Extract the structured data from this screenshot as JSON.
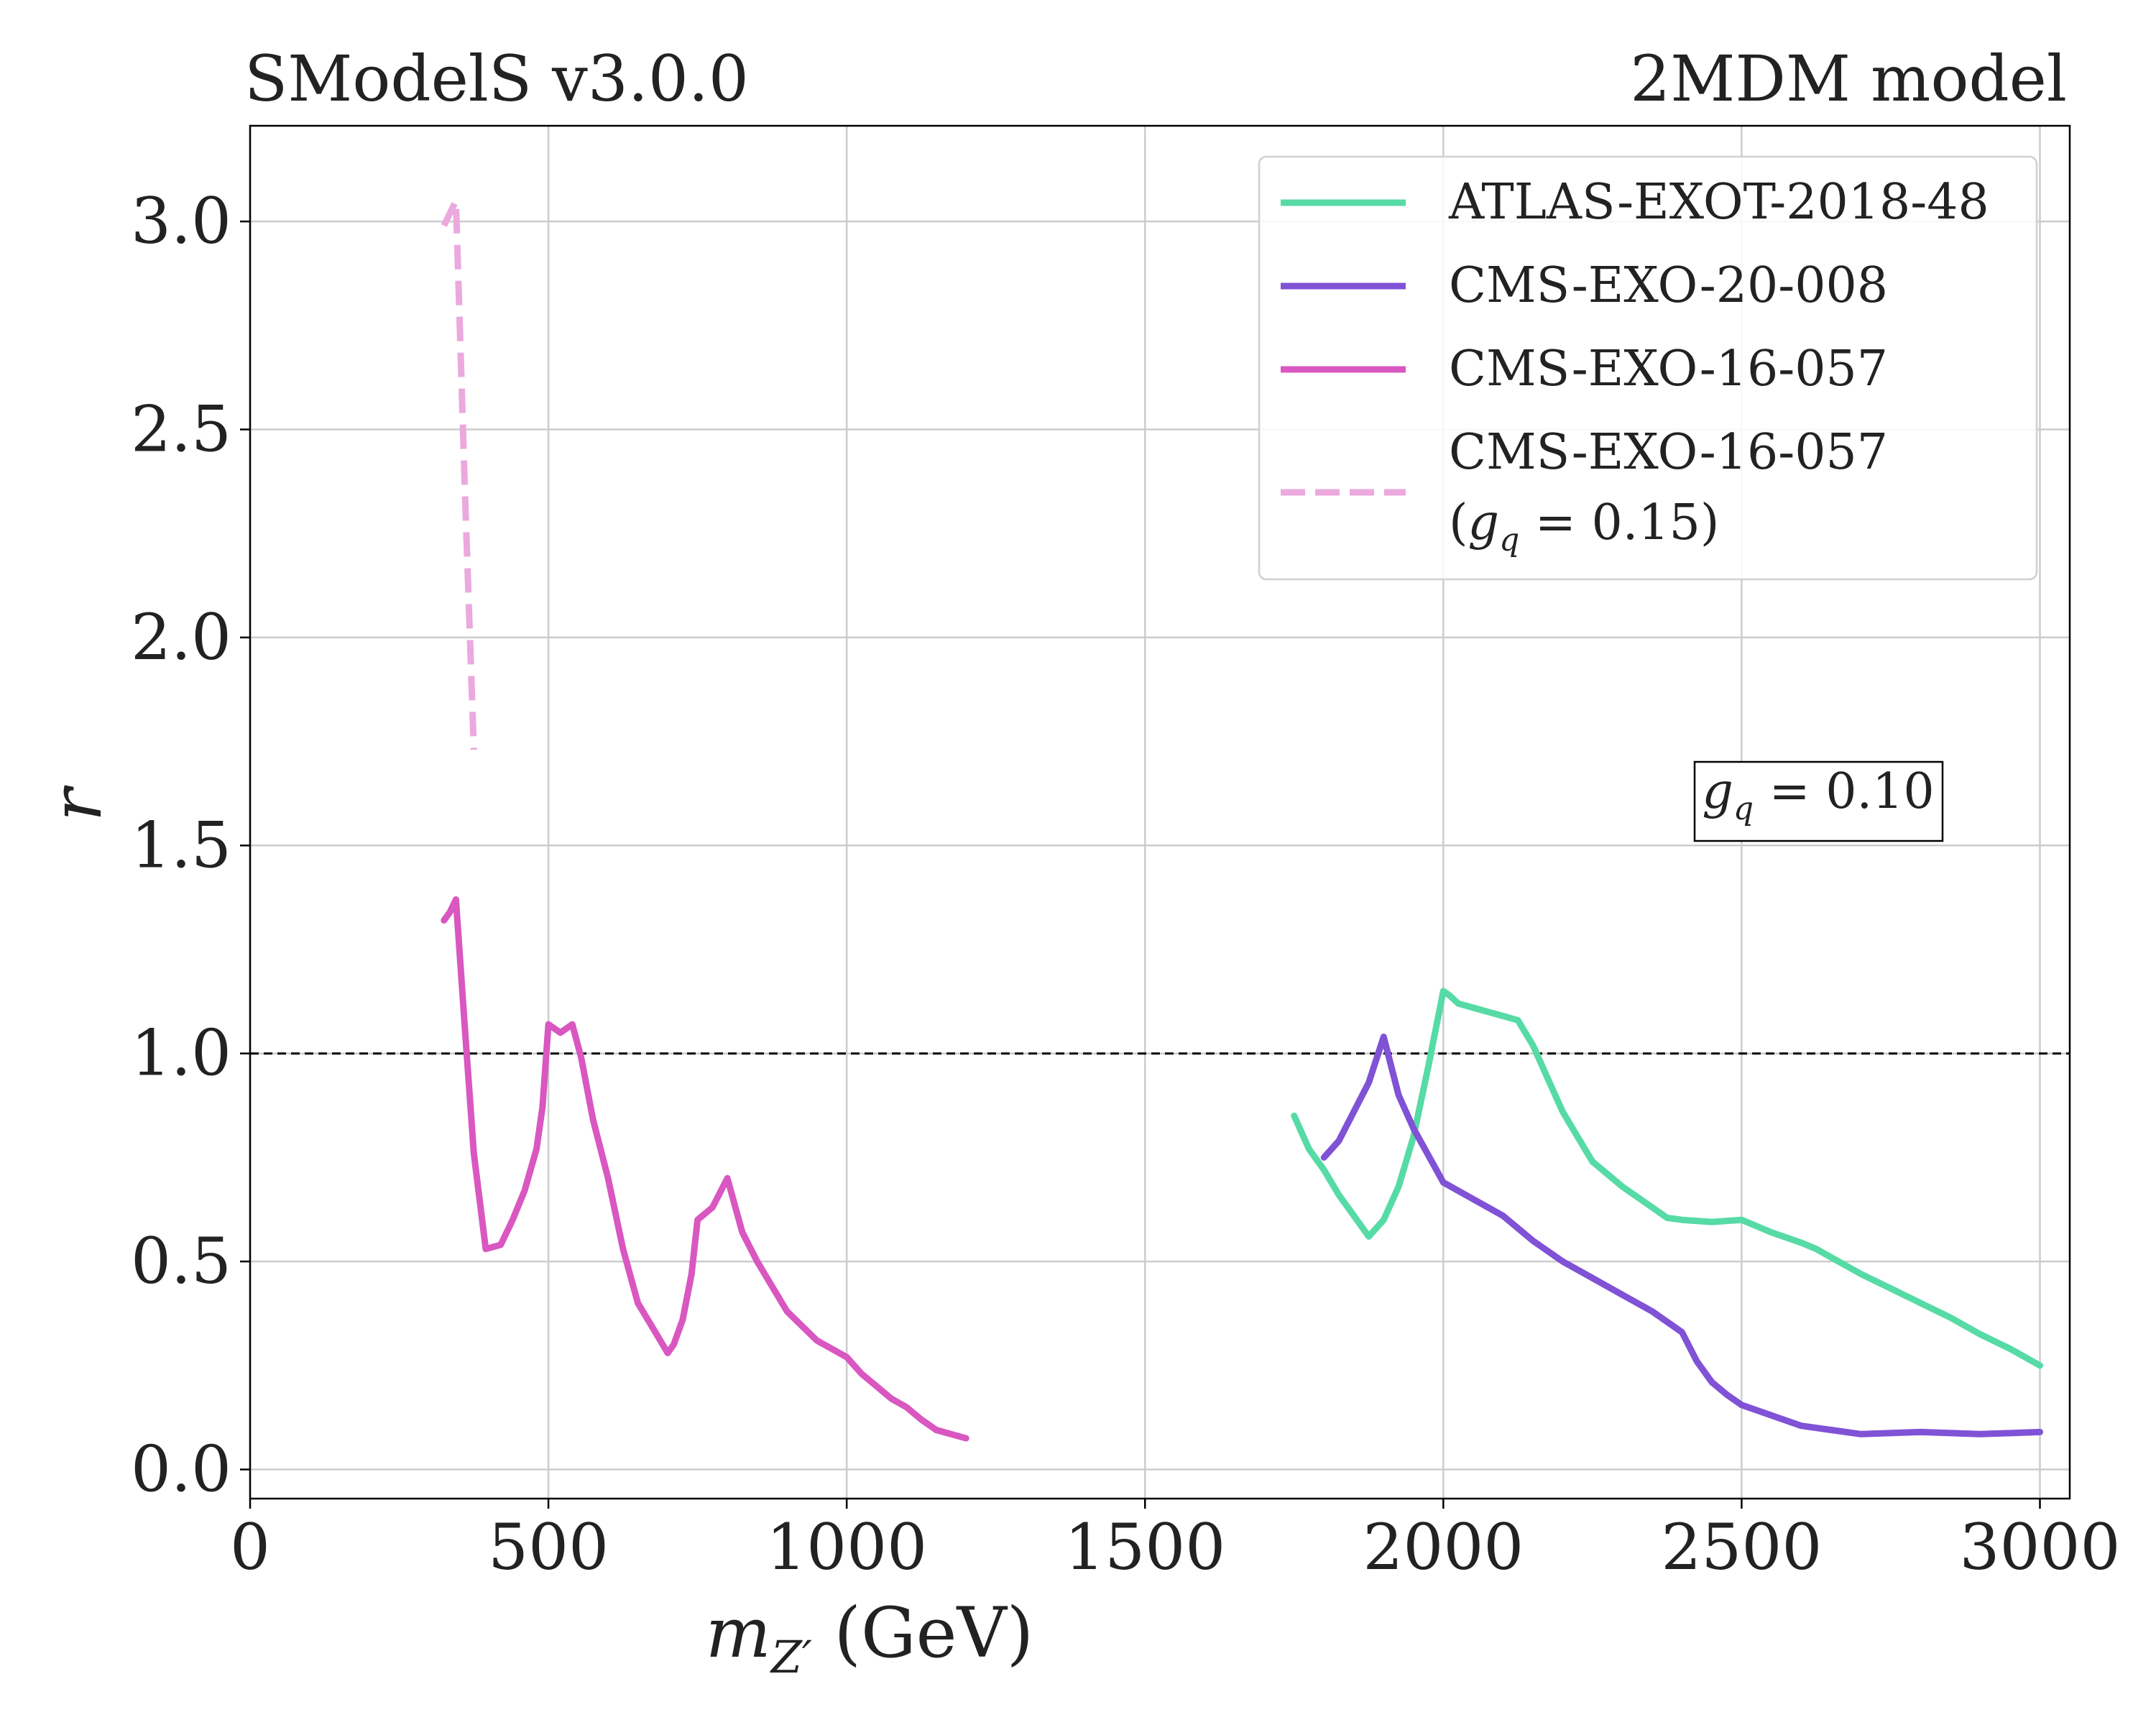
{
  "header": {
    "left_label": "SModelS v3.0.0",
    "right_label": "2MDM model"
  },
  "annotation": {
    "label": "g_q = 0.10",
    "g": "g",
    "sub": "q",
    "rest": " = 0.10"
  },
  "colors": {
    "atlas": "#57dba6",
    "cms20": "#8052d6",
    "cms16": "#d957c0",
    "cms16_dashed": "#eba9de",
    "reference": "#000000",
    "grid": "#cccccc"
  },
  "chart_data": {
    "type": "line",
    "xlabel": "m_Z' (GeV)",
    "xlabel_parts": {
      "m": "m",
      "sub": "Z′",
      "unit": " (GeV)"
    },
    "ylabel": "r",
    "xlim": [
      0,
      3050
    ],
    "ylim": [
      -0.07,
      3.23
    ],
    "xticks": [
      0,
      500,
      1000,
      1500,
      2000,
      2500,
      3000
    ],
    "xtick_labels": [
      "0",
      "500",
      "1000",
      "1500",
      "2000",
      "2500",
      "3000"
    ],
    "yticks": [
      0.0,
      0.5,
      1.0,
      1.5,
      2.0,
      2.5,
      3.0
    ],
    "ytick_labels": [
      "0.0",
      "0.5",
      "1.0",
      "1.5",
      "2.0",
      "2.5",
      "3.0"
    ],
    "grid": true,
    "legend_position": "top-right",
    "reference_line": {
      "y": 1.0,
      "style": "dashed"
    },
    "series": [
      {
        "name": "ATLAS-EXOT-2018-48",
        "style": "solid",
        "color_key": "atlas",
        "x": [
          1750,
          1775,
          1800,
          1825,
          1850,
          1875,
          1900,
          1925,
          1950,
          1975,
          2000,
          2010,
          2025,
          2050,
          2075,
          2100,
          2125,
          2150,
          2175,
          2200,
          2225,
          2250,
          2275,
          2300,
          2350,
          2375,
          2400,
          2450,
          2500,
          2550,
          2600,
          2625,
          2650,
          2700,
          2750,
          2800,
          2850,
          2875,
          2900,
          2950,
          3000
        ],
        "y": [
          0.85,
          0.77,
          0.72,
          0.66,
          0.61,
          0.56,
          0.6,
          0.68,
          0.8,
          0.97,
          1.15,
          1.14,
          1.12,
          1.11,
          1.1,
          1.09,
          1.08,
          1.02,
          0.94,
          0.86,
          0.8,
          0.74,
          0.71,
          0.68,
          0.63,
          0.605,
          0.6,
          0.595,
          0.6,
          0.57,
          0.545,
          0.53,
          0.51,
          0.47,
          0.435,
          0.4,
          0.365,
          0.345,
          0.325,
          0.29,
          0.25
        ]
      },
      {
        "name": "CMS-EXO-20-008",
        "style": "solid",
        "color_key": "cms20",
        "x": [
          1800,
          1825,
          1850,
          1875,
          1900,
          1925,
          1950,
          2000,
          2050,
          2100,
          2150,
          2200,
          2250,
          2300,
          2350,
          2400,
          2425,
          2450,
          2475,
          2500,
          2550,
          2600,
          2650,
          2700,
          2800,
          2900,
          3000
        ],
        "y": [
          0.75,
          0.79,
          0.86,
          0.93,
          1.04,
          0.9,
          0.82,
          0.69,
          0.65,
          0.61,
          0.55,
          0.5,
          0.46,
          0.42,
          0.38,
          0.33,
          0.26,
          0.21,
          0.18,
          0.155,
          0.13,
          0.105,
          0.095,
          0.085,
          0.09,
          0.085,
          0.09
        ]
      },
      {
        "name": "CMS-EXO-16-057",
        "style": "solid",
        "color_key": "cms16",
        "x": [
          325,
          335,
          345,
          360,
          375,
          395,
          420,
          440,
          460,
          480,
          490,
          500,
          520,
          540,
          555,
          575,
          600,
          625,
          650,
          675,
          700,
          710,
          725,
          740,
          750,
          775,
          800,
          825,
          850,
          900,
          950,
          1000,
          1025,
          1050,
          1075,
          1100,
          1125,
          1150,
          1175,
          1200
        ],
        "y": [
          1.32,
          1.34,
          1.37,
          1.06,
          0.76,
          0.53,
          0.54,
          0.6,
          0.67,
          0.77,
          0.87,
          1.07,
          1.05,
          1.07,
          0.99,
          0.84,
          0.7,
          0.53,
          0.4,
          0.34,
          0.28,
          0.3,
          0.36,
          0.47,
          0.6,
          0.63,
          0.7,
          0.57,
          0.5,
          0.38,
          0.31,
          0.27,
          0.23,
          0.2,
          0.17,
          0.15,
          0.12,
          0.095,
          0.085,
          0.075
        ]
      },
      {
        "name": "CMS-EXO-16-057",
        "name_line2": "(g_q = 0.15)",
        "name_line2_parts": {
          "open": "(",
          "g": "g",
          "sub": "q",
          "rest": " = 0.15)"
        },
        "style": "dashed",
        "color_key": "cms16_dashed",
        "x": [
          325,
          335,
          345,
          360,
          375
        ],
        "y": [
          2.99,
          3.02,
          3.05,
          2.35,
          1.73
        ]
      }
    ]
  }
}
